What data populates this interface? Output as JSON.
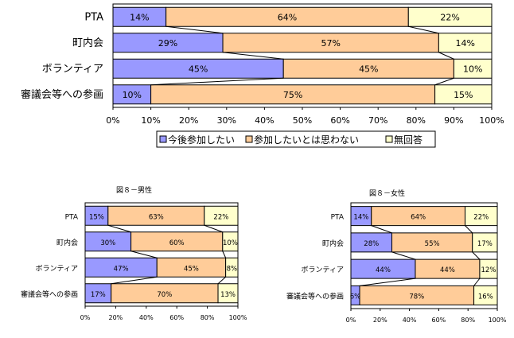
{
  "chart_data": [
    {
      "type": "bar",
      "stacked": "percent",
      "orientation": "horizontal",
      "title": "",
      "categories": [
        "PTA",
        "町内会",
        "ボランティア",
        "審議会等への参画"
      ],
      "series": [
        {
          "name": "今後参加したい",
          "values": [
            14,
            29,
            45,
            10
          ],
          "labels": [
            "14%",
            "29%",
            "45%",
            "10%"
          ],
          "color": "#9999ff"
        },
        {
          "name": "参加したいとは思わない",
          "values": [
            64,
            57,
            45,
            75
          ],
          "labels": [
            "64%",
            "57%",
            "45%",
            "75%"
          ],
          "color": "#ffcc99"
        },
        {
          "name": "無回答",
          "values": [
            22,
            14,
            10,
            15
          ],
          "labels": [
            "22%",
            "14%",
            "10%",
            "15%"
          ],
          "color": "#ffffcc"
        }
      ],
      "xticks": [
        "0%",
        "10%",
        "20%",
        "30%",
        "40%",
        "50%",
        "60%",
        "70%",
        "80%",
        "90%",
        "100%"
      ],
      "xlim": [
        0,
        100
      ],
      "legend": "bottom"
    },
    {
      "type": "bar",
      "stacked": "percent",
      "orientation": "horizontal",
      "title": "図８－男性",
      "categories": [
        "PTA",
        "町内会",
        "ボランティア",
        "審議会等への参画"
      ],
      "series": [
        {
          "name": "今後参加したい",
          "values": [
            15,
            30,
            47,
            17
          ],
          "labels": [
            "15%",
            "30%",
            "47%",
            "17%"
          ],
          "color": "#9999ff"
        },
        {
          "name": "参加したいとは思わない",
          "values": [
            63,
            60,
            45,
            70
          ],
          "labels": [
            "63%",
            "60%",
            "45%",
            "70%"
          ],
          "color": "#ffcc99"
        },
        {
          "name": "無回答",
          "values": [
            22,
            10,
            8,
            13
          ],
          "labels": [
            "22%",
            "10%",
            "8%",
            "13%"
          ],
          "color": "#ffffcc"
        }
      ],
      "xticks": [
        "0%",
        "20%",
        "40%",
        "60%",
        "80%",
        "100%"
      ],
      "xlim": [
        0,
        100
      ]
    },
    {
      "type": "bar",
      "stacked": "percent",
      "orientation": "horizontal",
      "title": "図８－女性",
      "categories": [
        "PTA",
        "町内会",
        "ボランティア",
        "審議会等への参画"
      ],
      "series": [
        {
          "name": "今後参加したい",
          "values": [
            14,
            28,
            44,
            6
          ],
          "labels": [
            "14%",
            "28%",
            "44%",
            "6%"
          ],
          "color": "#9999ff"
        },
        {
          "name": "参加したいとは思わない",
          "values": [
            64,
            55,
            44,
            78
          ],
          "labels": [
            "64%",
            "55%",
            "44%",
            "78%"
          ],
          "color": "#ffcc99"
        },
        {
          "name": "無回答",
          "values": [
            22,
            17,
            12,
            16
          ],
          "labels": [
            "22%",
            "17%",
            "12%",
            "16%"
          ],
          "color": "#ffffcc"
        }
      ],
      "xticks": [
        "0%",
        "20%",
        "40%",
        "60%",
        "80%",
        "100%"
      ],
      "xlim": [
        0,
        100
      ]
    }
  ]
}
